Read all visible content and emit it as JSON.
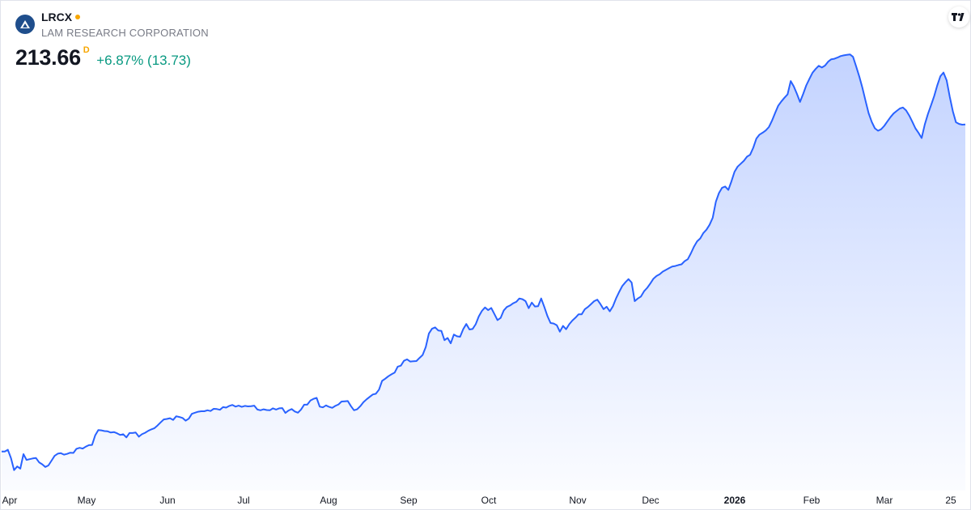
{
  "symbol": {
    "ticker": "LRCX",
    "company": "LAM RESEARCH CORPORATION",
    "price": "213.66",
    "price_suffix": "D",
    "change": "+6.87% (13.73)",
    "logo_icon": "lam-research-logo-icon",
    "brand_icon": "tradingview-logo-icon"
  },
  "colors": {
    "line": "#2962ff",
    "area_top": "#2962ff",
    "positive": "#089981",
    "live_dot": "#f7a600"
  },
  "chart_data": {
    "type": "area",
    "title": "",
    "xlabel": "",
    "ylabel": "",
    "ylim": [
      68,
      245
    ],
    "grid": false,
    "x_ticks": [
      {
        "label": "Apr",
        "bold": false
      },
      {
        "label": "May",
        "bold": false
      },
      {
        "label": "Jun",
        "bold": false
      },
      {
        "label": "Jul",
        "bold": false
      },
      {
        "label": "Aug",
        "bold": false
      },
      {
        "label": "Sep",
        "bold": false
      },
      {
        "label": "Oct",
        "bold": false
      },
      {
        "label": "Nov",
        "bold": false
      },
      {
        "label": "Dec",
        "bold": false
      },
      {
        "label": "2026",
        "bold": true
      },
      {
        "label": "Feb",
        "bold": false
      },
      {
        "label": "Mar",
        "bold": false
      },
      {
        "label": "25",
        "bold": false
      }
    ],
    "series": [
      {
        "values": [
          78.8,
          78.8,
          79.5,
          76,
          71.1,
          72.6,
          71.7,
          77.7,
          75.3,
          75.6,
          75.9,
          76.1,
          74.3,
          73.5,
          72.4,
          73,
          75,
          77,
          77.9,
          78.1,
          77.5,
          77.8,
          78.3,
          78.2,
          79.9,
          80.3,
          80,
          80.8,
          81.4,
          81.5,
          85.4,
          87.6,
          87.5,
          87.2,
          87.1,
          86.6,
          86.8,
          86.3,
          85.6,
          85.9,
          84.6,
          86.4,
          86.4,
          86.6,
          84.9,
          85.9,
          86.5,
          87.3,
          87.9,
          88.4,
          89.5,
          90.8,
          92,
          92.2,
          92.5,
          91.8,
          93.3,
          93,
          92.6,
          91.5,
          92.3,
          94.3,
          94.8,
          95.2,
          95.4,
          95.4,
          95.8,
          95.5,
          96.4,
          96.3,
          96,
          97.1,
          96.9,
          97.6,
          98,
          97.3,
          97.7,
          97.2,
          97.6,
          97.4,
          97.5,
          97.7,
          96.1,
          95.8,
          96.2,
          95.9,
          95.8,
          96.6,
          96.1,
          96.6,
          96.7,
          94.7,
          95.7,
          96.3,
          95.3,
          94.8,
          96.1,
          98.1,
          98.1,
          99.8,
          100.5,
          100.9,
          97.3,
          97,
          97.8,
          97.2,
          96.8,
          97.6,
          98.2,
          99.4,
          99.5,
          99.6,
          97.5,
          95.8,
          96.2,
          97.5,
          99.1,
          100.3,
          101.3,
          102.3,
          102.6,
          104.3,
          107.9,
          108.8,
          109.8,
          110.6,
          111.3,
          113.8,
          114.2,
          116.2,
          116.8,
          115.9,
          116,
          116.1,
          117.4,
          118.6,
          121.9,
          127.4,
          129.4,
          130,
          128.7,
          128.5,
          124.7,
          125.6,
          123.4,
          127,
          126.3,
          126.1,
          129.2,
          131.4,
          129.1,
          129.3,
          131.3,
          134.5,
          136.8,
          138.2,
          137.1,
          138,
          135.5,
          133,
          133.9,
          137,
          138.4,
          139,
          139.9,
          140.5,
          141.9,
          141.6,
          140.8,
          137.9,
          140.2,
          138.6,
          138.7,
          141.9,
          138.4,
          134.7,
          131.8,
          131.6,
          130.9,
          128.2,
          130.6,
          129.2,
          131.3,
          132.8,
          134,
          135.4,
          135.4,
          137.5,
          138.4,
          139.6,
          140.8,
          141.4,
          139.6,
          137.5,
          138.5,
          136.6,
          138.7,
          141.9,
          144.6,
          147,
          148.6,
          149.9,
          148.5,
          140.8,
          141.9,
          142.7,
          144.9,
          146.3,
          148.1,
          150.1,
          151.2,
          151.9,
          153,
          153.7,
          154.4,
          155.1,
          155.3,
          155.7,
          156,
          157.3,
          158.1,
          160.5,
          163.3,
          165.5,
          166.7,
          168.9,
          170.3,
          172.3,
          175.2,
          181.8,
          185.4,
          187.6,
          188.1,
          186.7,
          190.2,
          194.2,
          196.3,
          197.5,
          198.7,
          200.4,
          201.2,
          204.1,
          207.9,
          209.5,
          210.3,
          211.2,
          212.6,
          215.2,
          218.4,
          221.4,
          223.2,
          224.7,
          226.1,
          231.6,
          229.4,
          226.3,
          223,
          226.3,
          229.8,
          232.5,
          235,
          236.6,
          237.9,
          237.2,
          238,
          239.6,
          240.6,
          240.8,
          241.3,
          241.9,
          242.2,
          242.4,
          242.6,
          241.6,
          237.6,
          233.4,
          228.8,
          223.4,
          218.3,
          214.7,
          212.1,
          211.1,
          211.7,
          213.1,
          214.9,
          216.7,
          218.2,
          219.3,
          220.3,
          220.7,
          219.5,
          217.4,
          214.8,
          212.1,
          210.2,
          208.1,
          213.7,
          217.9,
          221.6,
          225.4,
          229.8,
          233.6,
          235.1,
          231.9,
          225.2,
          219.1,
          214.6,
          213.9,
          213.6,
          213.66
        ]
      }
    ]
  }
}
